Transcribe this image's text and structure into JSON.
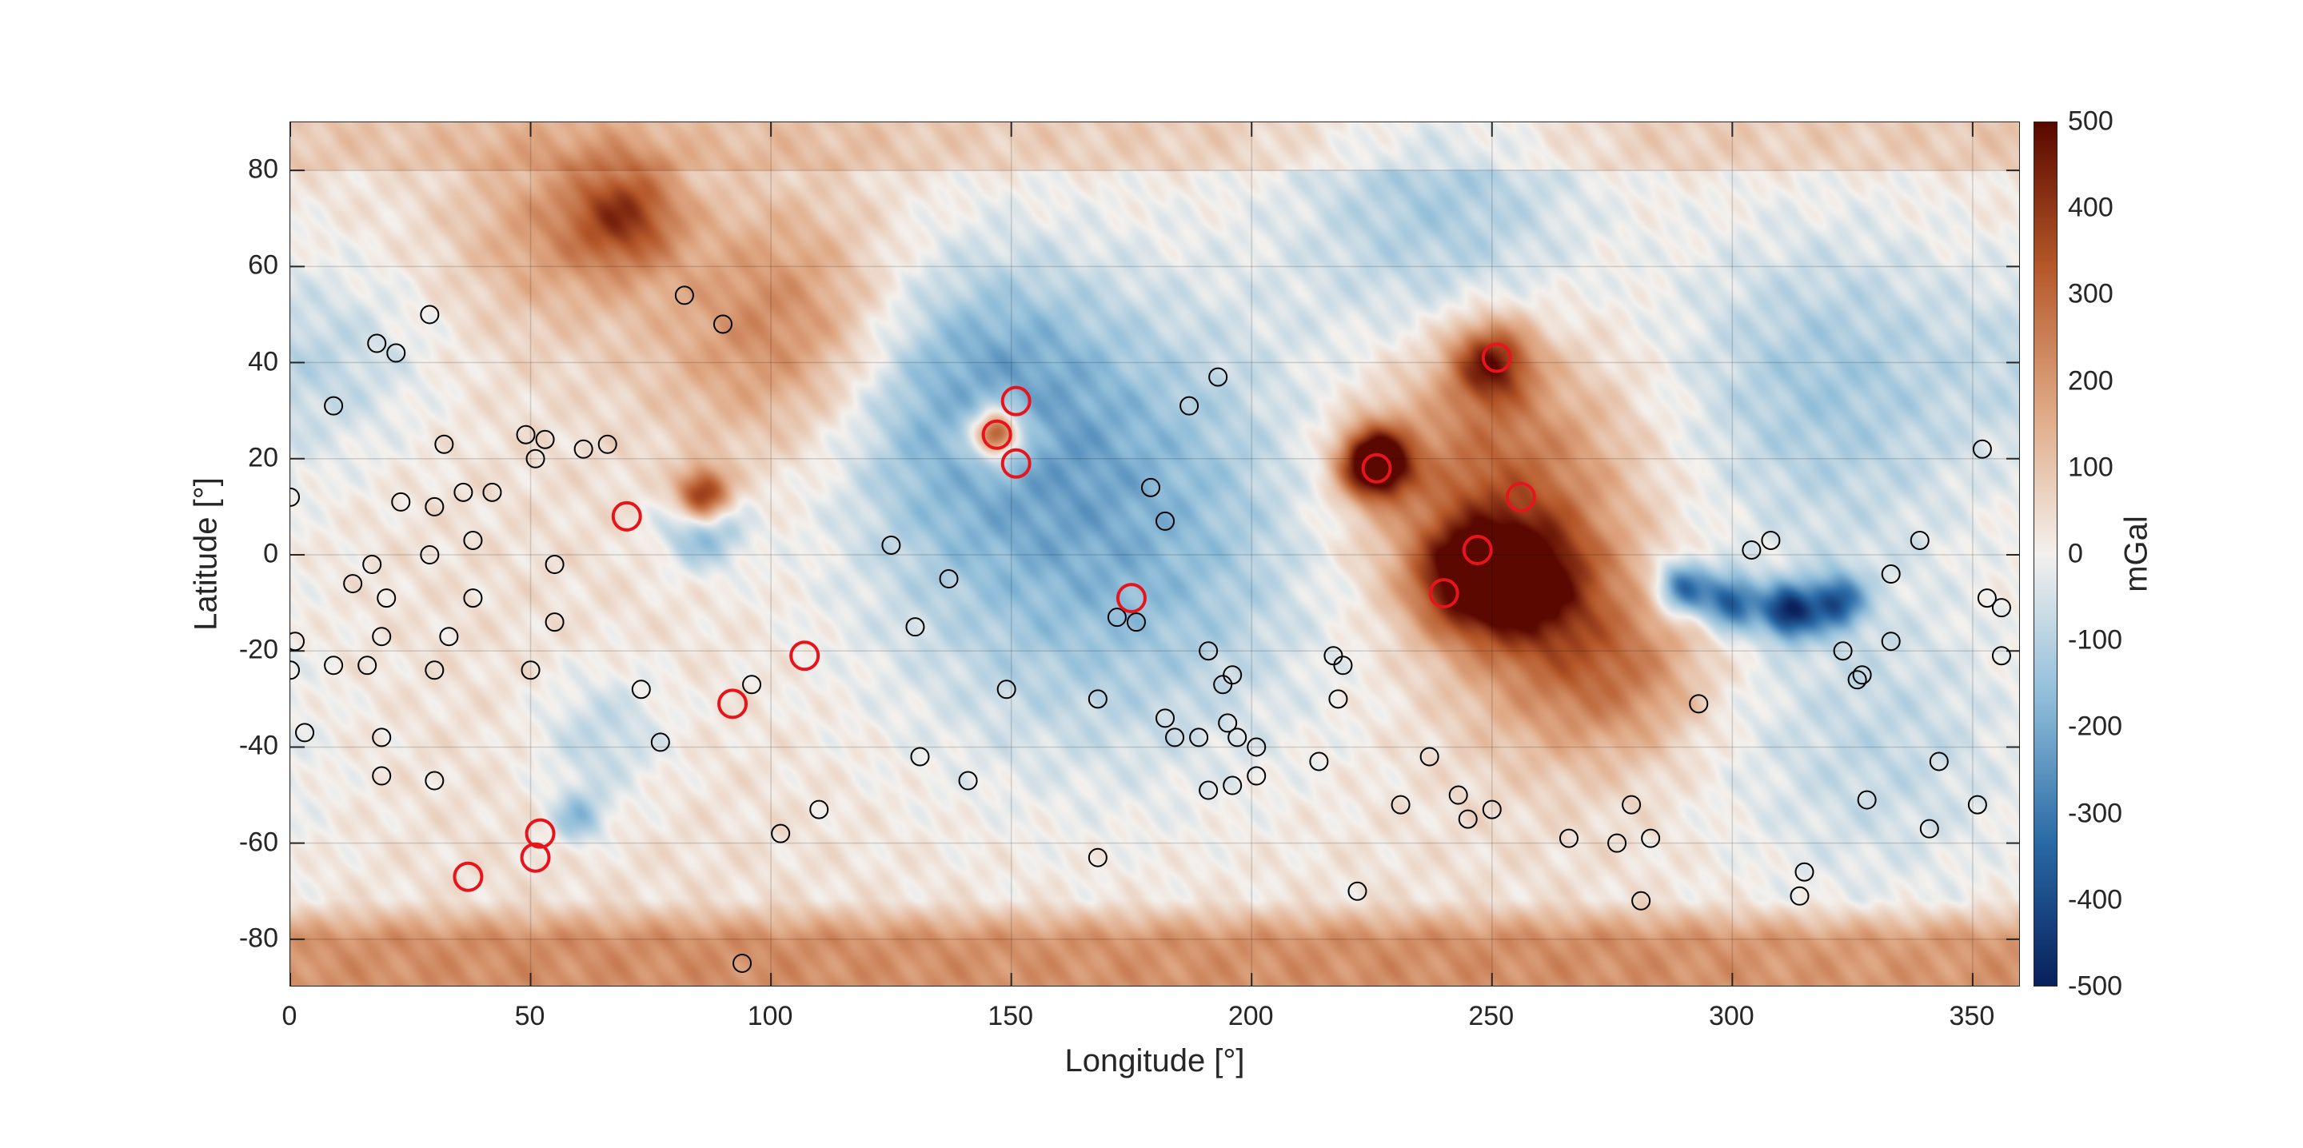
{
  "chart_data": {
    "type": "heatmap",
    "xlabel": "Longitude [°]",
    "ylabel": "Latitude [°]",
    "xlim": [
      0,
      360
    ],
    "ylim": [
      -90,
      90
    ],
    "xticks": [
      "0",
      "50",
      "100",
      "150",
      "200",
      "250",
      "300",
      "350"
    ],
    "yticks": [
      "80",
      "60",
      "40",
      "20",
      "0",
      "-20",
      "-40",
      "-60",
      "-80"
    ],
    "grid": true,
    "colorbar": {
      "label": "mGal",
      "range": [
        -500,
        500
      ],
      "ticks": [
        "500",
        "400",
        "300",
        "200",
        "100",
        "0",
        "-100",
        "-200",
        "-300",
        "-400",
        "-500"
      ],
      "colormap": [
        "#08205c",
        "#2a6aa6",
        "#8fbdd9",
        "#f4f1ee",
        "#dfa884",
        "#b5582a",
        "#5a0800"
      ]
    },
    "field_features": [
      {
        "lon": 86,
        "lat": 12,
        "value": 500,
        "radius": 4
      },
      {
        "lon": 86,
        "lat": 6,
        "value": -250,
        "radius": 6
      },
      {
        "lon": 103,
        "lat": 47,
        "value": 220,
        "radius": 18
      },
      {
        "lon": 70,
        "lat": 71,
        "value": 280,
        "radius": 8
      },
      {
        "lon": 55,
        "lat": 68,
        "value": 150,
        "radius": 14
      },
      {
        "lon": 147,
        "lat": 25,
        "value": 450,
        "radius": 3
      },
      {
        "lon": 147,
        "lat": 25,
        "value": 150,
        "radius": 7
      },
      {
        "lon": 226,
        "lat": 19,
        "value": 650,
        "radius": 5
      },
      {
        "lon": 250,
        "lat": 40,
        "value": 380,
        "radius": 6
      },
      {
        "lon": 250,
        "lat": 15,
        "value": 280,
        "radius": 20
      },
      {
        "lon": 245,
        "lat": -5,
        "value": 380,
        "radius": 8
      },
      {
        "lon": 258,
        "lat": -5,
        "value": 330,
        "radius": 9
      },
      {
        "lon": 265,
        "lat": -22,
        "value": 180,
        "radius": 15
      },
      {
        "lon": 280,
        "lat": -25,
        "value": 120,
        "radius": 12
      },
      {
        "lon": 290,
        "lat": -7,
        "value": -380,
        "radius": 4
      },
      {
        "lon": 300,
        "lat": -10,
        "value": -380,
        "radius": 4
      },
      {
        "lon": 312,
        "lat": -12,
        "value": -450,
        "radius": 4
      },
      {
        "lon": 322,
        "lat": -10,
        "value": -350,
        "radius": 4
      },
      {
        "lon": 170,
        "lat": 5,
        "value": -230,
        "radius": 35
      },
      {
        "lon": 140,
        "lat": 35,
        "value": -180,
        "radius": 20
      },
      {
        "lon": 240,
        "lat": 72,
        "value": -160,
        "radius": 22
      },
      {
        "lon": 320,
        "lat": 35,
        "value": -170,
        "radius": 25
      },
      {
        "lon": 330,
        "lat": -40,
        "value": -120,
        "radius": 25
      },
      {
        "lon": 10,
        "lat": 40,
        "value": -100,
        "radius": 15
      },
      {
        "lon": 65,
        "lat": -38,
        "value": -120,
        "radius": 10
      },
      {
        "lon": 60,
        "lat": -55,
        "value": -180,
        "radius": 4
      }
    ],
    "series": [
      {
        "marker": "circle",
        "color": "#000000",
        "points": [
          [
            29,
            50
          ],
          [
            18,
            44
          ],
          [
            22,
            42
          ],
          [
            9,
            31
          ],
          [
            0,
            12
          ],
          [
            23,
            11
          ],
          [
            30,
            10
          ],
          [
            32,
            23
          ],
          [
            36,
            13
          ],
          [
            42,
            13
          ],
          [
            38,
            3
          ],
          [
            29,
            0
          ],
          [
            17,
            -2
          ],
          [
            13,
            -6
          ],
          [
            20,
            -9
          ],
          [
            38,
            -9
          ],
          [
            55,
            -2
          ],
          [
            49,
            25
          ],
          [
            53,
            24
          ],
          [
            51,
            20
          ],
          [
            61,
            22
          ],
          [
            66,
            23
          ],
          [
            33,
            -17
          ],
          [
            19,
            -17
          ],
          [
            55,
            -14
          ],
          [
            1,
            -18
          ],
          [
            0,
            -24
          ],
          [
            9,
            -23
          ],
          [
            16,
            -23
          ],
          [
            30,
            -24
          ],
          [
            50,
            -24
          ],
          [
            3,
            -37
          ],
          [
            19,
            -38
          ],
          [
            19,
            -46
          ],
          [
            30,
            -47
          ],
          [
            73,
            -28
          ],
          [
            77,
            -39
          ],
          [
            96,
            -27
          ],
          [
            82,
            54
          ],
          [
            90,
            48
          ],
          [
            125,
            2
          ],
          [
            137,
            -5
          ],
          [
            130,
            -15
          ],
          [
            131,
            -42
          ],
          [
            141,
            -47
          ],
          [
            149,
            -28
          ],
          [
            110,
            -53
          ],
          [
            102,
            -58
          ],
          [
            94,
            -85
          ],
          [
            168,
            -63
          ],
          [
            172,
            -13
          ],
          [
            176,
            -14
          ],
          [
            179,
            14
          ],
          [
            182,
            7
          ],
          [
            187,
            31
          ],
          [
            193,
            37
          ],
          [
            168,
            -30
          ],
          [
            191,
            -20
          ],
          [
            194,
            -27
          ],
          [
            196,
            -25
          ],
          [
            182,
            -34
          ],
          [
            184,
            -38
          ],
          [
            189,
            -38
          ],
          [
            195,
            -35
          ],
          [
            197,
            -38
          ],
          [
            201,
            -40
          ],
          [
            201,
            -46
          ],
          [
            191,
            -49
          ],
          [
            196,
            -48
          ],
          [
            214,
            -43
          ],
          [
            217,
            -21
          ],
          [
            219,
            -23
          ],
          [
            218,
            -30
          ],
          [
            231,
            -52
          ],
          [
            237,
            -42
          ],
          [
            243,
            -50
          ],
          [
            245,
            -55
          ],
          [
            250,
            -53
          ],
          [
            222,
            -70
          ],
          [
            266,
            -59
          ],
          [
            276,
            -60
          ],
          [
            283,
            -59
          ],
          [
            279,
            -52
          ],
          [
            281,
            -72
          ],
          [
            293,
            -31
          ],
          [
            304,
            1
          ],
          [
            308,
            3
          ],
          [
            323,
            -20
          ],
          [
            326,
            -26
          ],
          [
            327,
            -25
          ],
          [
            328,
            -51
          ],
          [
            333,
            -18
          ],
          [
            333,
            -4
          ],
          [
            339,
            3
          ],
          [
            343,
            -43
          ],
          [
            351,
            -52
          ],
          [
            341,
            -57
          ],
          [
            315,
            -66
          ],
          [
            314,
            -71
          ],
          [
            352,
            22
          ],
          [
            353,
            -9
          ],
          [
            356,
            -11
          ],
          [
            356,
            -21
          ]
        ]
      },
      {
        "marker": "circle",
        "color": "#e8141c",
        "points": [
          [
            70,
            8
          ],
          [
            92,
            -31
          ],
          [
            107,
            -21
          ],
          [
            52,
            -58
          ],
          [
            51,
            -63
          ],
          [
            37,
            -67
          ],
          [
            147,
            25
          ],
          [
            151,
            32
          ],
          [
            151,
            19
          ],
          [
            175,
            -9
          ],
          [
            226,
            18
          ],
          [
            251,
            41
          ],
          [
            256,
            12
          ],
          [
            247,
            1
          ],
          [
            240,
            -8
          ]
        ]
      }
    ]
  }
}
